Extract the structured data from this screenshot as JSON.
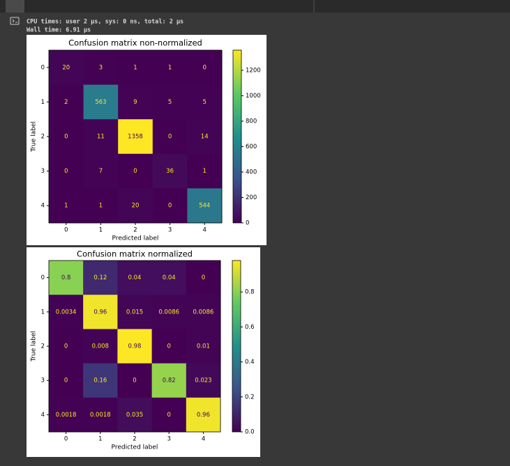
{
  "output": {
    "lines": [
      "CPU times: user 2 µs, sys: 0 ns, total: 2 µs",
      "Wall time: 6.91 µs"
    ]
  },
  "chart_data": [
    {
      "type": "heatmap",
      "title": "Confusion matrix non-normalized",
      "x_label": "Predicted label",
      "y_label": "True label",
      "x_categories": [
        "0",
        "1",
        "2",
        "3",
        "4"
      ],
      "y_categories": [
        "0",
        "1",
        "2",
        "3",
        "4"
      ],
      "values": [
        [
          20,
          3,
          1,
          1,
          0
        ],
        [
          2,
          563,
          9,
          5,
          5
        ],
        [
          0,
          11,
          1358,
          0,
          14
        ],
        [
          0,
          7,
          0,
          36,
          1
        ],
        [
          1,
          1,
          20,
          0,
          544
        ]
      ],
      "colormap": "viridis",
      "colorbar_lim": [
        0,
        1358
      ],
      "colorbar_ticks": [
        0,
        200,
        400,
        600,
        800,
        1000,
        1200
      ]
    },
    {
      "type": "heatmap",
      "title": "Confusion matrix normalized",
      "x_label": "Predicted label",
      "y_label": "True label",
      "x_categories": [
        "0",
        "1",
        "2",
        "3",
        "4"
      ],
      "y_categories": [
        "0",
        "1",
        "2",
        "3",
        "4"
      ],
      "values": [
        [
          0.8,
          0.12,
          0.04,
          0.04,
          0
        ],
        [
          0.0034,
          0.96,
          0.015,
          0.0086,
          0.0086
        ],
        [
          0,
          0.008,
          0.98,
          0,
          0.01
        ],
        [
          0,
          0.16,
          0,
          0.82,
          0.023
        ],
        [
          0.0018,
          0.0018,
          0.035,
          0,
          0.96
        ]
      ],
      "colormap": "viridis",
      "colorbar_lim": [
        0,
        0.98
      ],
      "colorbar_ticks": [
        {
          "value": 0,
          "label": "0.0"
        },
        0.2,
        0.4,
        0.6,
        0.8
      ]
    }
  ]
}
